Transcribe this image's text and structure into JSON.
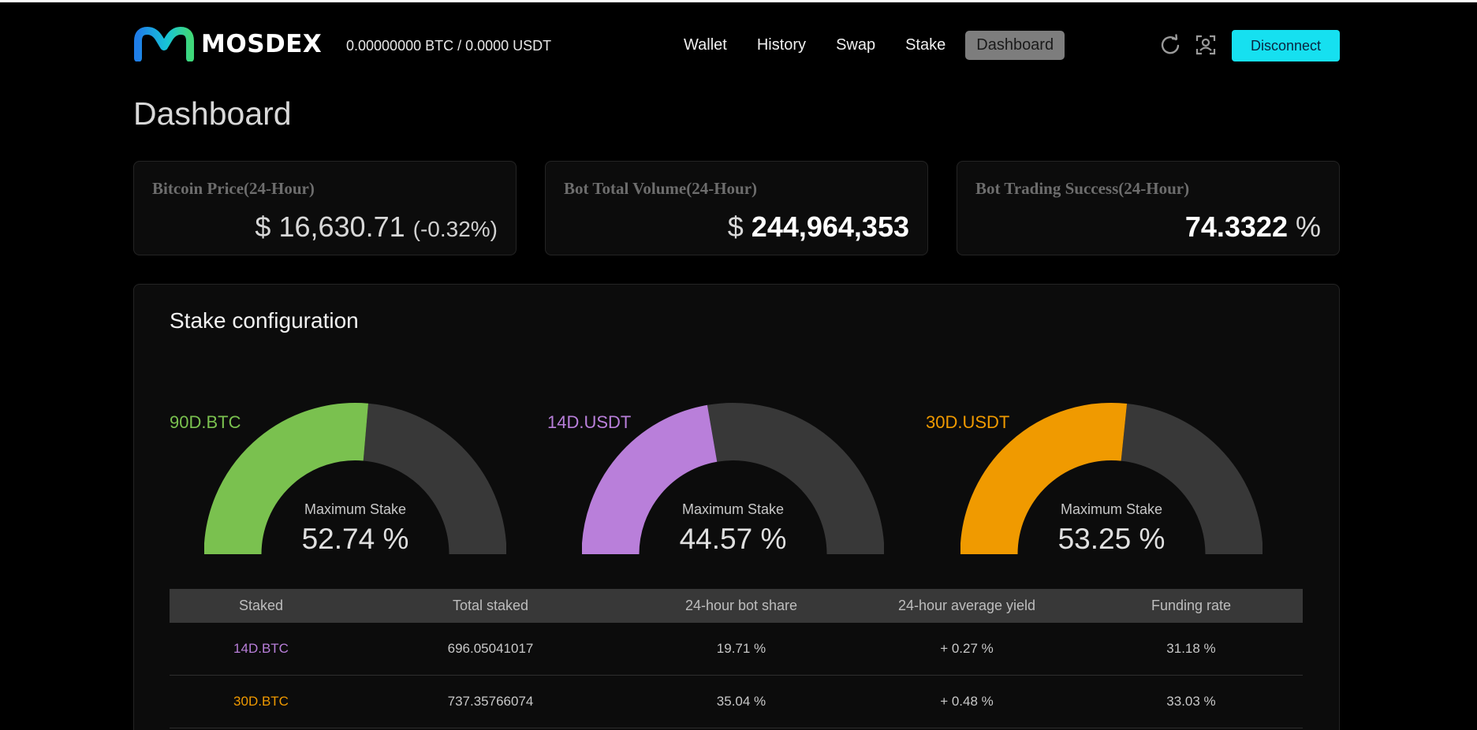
{
  "header": {
    "logo_text": "MOSDEX",
    "balance": "0.00000000 BTC / 0.0000 USDT",
    "nav": [
      {
        "label": "Wallet",
        "active": false
      },
      {
        "label": "History",
        "active": false
      },
      {
        "label": "Swap",
        "active": false
      },
      {
        "label": "Stake",
        "active": false
      },
      {
        "label": "Dashboard",
        "active": true
      }
    ],
    "refresh_icon": "refresh-icon",
    "user_icon": "user-frame-icon",
    "disconnect_label": "Disconnect",
    "accent_color": "#16e0f0"
  },
  "page_title": "Dashboard",
  "stats": [
    {
      "label": "Bitcoin Price(24-Hour)",
      "prefix": "$",
      "value": "16,630.71",
      "suffix": "(-0.32%)"
    },
    {
      "label": "Bot Total Volume(24-Hour)",
      "prefix": "$",
      "value": "244,964,353",
      "suffix": ""
    },
    {
      "label": "Bot Trading Success(24-Hour)",
      "prefix": "",
      "value": "74.3322",
      "suffix": "%"
    }
  ],
  "stake": {
    "title": "Stake configuration",
    "gauges": [
      {
        "label": "90D.BTC",
        "caption": "Maximum Stake",
        "value_text": "52.74 %",
        "percent": 52.74,
        "color": "#7ac14f"
      },
      {
        "label": "14D.USDT",
        "caption": "Maximum Stake",
        "value_text": "44.57 %",
        "percent": 44.57,
        "color": "#b97fda"
      },
      {
        "label": "30D.USDT",
        "caption": "Maximum Stake",
        "value_text": "53.25 %",
        "percent": 53.25,
        "color": "#f09a00"
      }
    ],
    "gauge_track_color": "#383838",
    "table": {
      "columns": [
        "Staked",
        "Total staked",
        "24-hour bot share",
        "24-hour average yield",
        "Funding rate"
      ],
      "rows": [
        {
          "staked": "14D.BTC",
          "total": "696.05041017",
          "share": "19.71 %",
          "yield": "+ 0.27 %",
          "funding": "31.18 %",
          "color": "#b97fda"
        },
        {
          "staked": "30D.BTC",
          "total": "737.35766074",
          "share": "35.04 %",
          "yield": "+ 0.48 %",
          "funding": "33.03 %",
          "color": "#f09a00"
        }
      ]
    }
  }
}
